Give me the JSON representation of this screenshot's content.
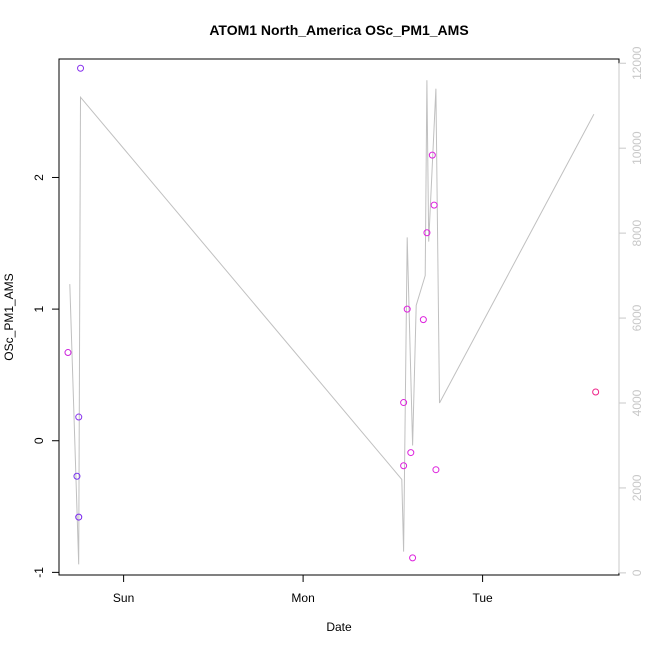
{
  "chart_data": {
    "type": "scatter",
    "title": "ATOM1 North_America OSc_PM1_AMS",
    "xlabel": "Date",
    "ylabel": "OSc_PM1_AMS",
    "xlim": [
      -0.36,
      2.76
    ],
    "ylim": [
      -1.02,
      2.9
    ],
    "y2lim": [
      -50,
      12100
    ],
    "x_ticks": [
      {
        "value": 0,
        "label": "Sun"
      },
      {
        "value": 1,
        "label": "Mon"
      },
      {
        "value": 2,
        "label": "Tue"
      }
    ],
    "y_ticks": [
      {
        "value": -1,
        "label": "-1"
      },
      {
        "value": 0,
        "label": "0"
      },
      {
        "value": 1,
        "label": "1"
      },
      {
        "value": 2,
        "label": "2"
      }
    ],
    "y2_ticks": [
      {
        "value": 0,
        "label": "0"
      },
      {
        "value": 2000,
        "label": "2000"
      },
      {
        "value": 4000,
        "label": "4000"
      },
      {
        "value": 6000,
        "label": "6000"
      },
      {
        "value": 8000,
        "label": "8000"
      },
      {
        "value": 10000,
        "label": "10000"
      },
      {
        "value": 12000,
        "label": "12000"
      }
    ],
    "grid": false,
    "series": [
      {
        "type": "points",
        "axis": "left",
        "points": [
          {
            "x": -0.31,
            "y": 0.67,
            "color": "#cc22dd"
          },
          {
            "x": -0.26,
            "y": -0.27,
            "color": "#7733ee"
          },
          {
            "x": -0.25,
            "y": 0.18,
            "color": "#8833ee"
          },
          {
            "x": -0.25,
            "y": -0.58,
            "color": "#7722ee"
          },
          {
            "x": -0.24,
            "y": 2.83,
            "color": "#8833ee"
          },
          {
            "x": 1.56,
            "y": 0.29,
            "color": "#dd22dd"
          },
          {
            "x": 1.56,
            "y": -0.19,
            "color": "#dd22dd"
          },
          {
            "x": 1.58,
            "y": 1.0,
            "color": "#dd22dd"
          },
          {
            "x": 1.6,
            "y": -0.09,
            "color": "#dd22dd"
          },
          {
            "x": 1.61,
            "y": -0.89,
            "color": "#dd22dd"
          },
          {
            "x": 1.67,
            "y": 0.92,
            "color": "#dd22dd"
          },
          {
            "x": 1.69,
            "y": 1.58,
            "color": "#dd22dd"
          },
          {
            "x": 1.72,
            "y": 2.17,
            "color": "#dd22dd"
          },
          {
            "x": 1.73,
            "y": 1.79,
            "color": "#dd22dd"
          },
          {
            "x": 1.74,
            "y": -0.22,
            "color": "#dd22dd"
          },
          {
            "x": 2.63,
            "y": 0.37,
            "color": "#ee2288"
          }
        ]
      },
      {
        "type": "line",
        "axis": "right",
        "color": "#c0c0c0",
        "points": [
          {
            "x": -0.3,
            "y": 6800
          },
          {
            "x": -0.25,
            "y": 200
          },
          {
            "x": -0.24,
            "y": 11200
          },
          {
            "x": 1.55,
            "y": 2200
          },
          {
            "x": 1.56,
            "y": 500
          },
          {
            "x": 1.58,
            "y": 7900
          },
          {
            "x": 1.61,
            "y": 3000
          },
          {
            "x": 1.63,
            "y": 6300
          },
          {
            "x": 1.68,
            "y": 7000
          },
          {
            "x": 1.69,
            "y": 11600
          },
          {
            "x": 1.7,
            "y": 7800
          },
          {
            "x": 1.74,
            "y": 11400
          },
          {
            "x": 1.76,
            "y": 4000
          },
          {
            "x": 2.62,
            "y": 10800
          }
        ]
      }
    ]
  }
}
